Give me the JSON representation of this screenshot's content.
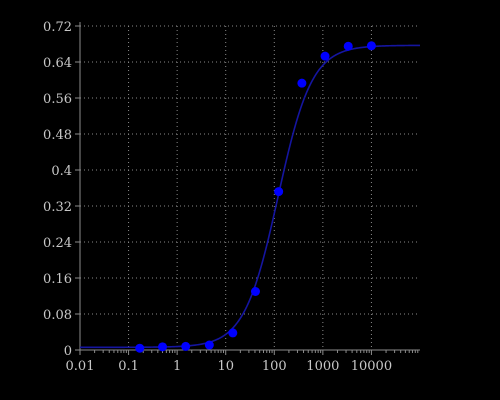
{
  "chart_data": {
    "type": "scatter",
    "title": "",
    "xlabel": "",
    "ylabel": "",
    "x_scale": "log",
    "xlim": [
      0.01,
      100000
    ],
    "ylim": [
      0,
      0.72
    ],
    "grid": true,
    "x_ticks": [
      0.01,
      0.1,
      1,
      10,
      100,
      1000,
      10000
    ],
    "x_tick_labels": [
      "0.01",
      "0.1",
      "1",
      "10",
      "100",
      "1000",
      "10000"
    ],
    "y_ticks": [
      0,
      0.08,
      0.16,
      0.24,
      0.32,
      0.4,
      0.48,
      0.56,
      0.64,
      0.72
    ],
    "y_tick_labels": [
      "0",
      "0.08",
      "0.16",
      "0.24",
      "0.32",
      "0.4",
      "0.48",
      "0.56",
      "0.64",
      "0.72"
    ],
    "series": [
      {
        "kind": "points",
        "color": "#0000ff",
        "x": [
          0.17,
          0.5,
          1.5,
          4.6,
          14,
          41,
          123,
          370,
          1110,
          3330,
          10000
        ],
        "y": [
          0.004,
          0.007,
          0.008,
          0.011,
          0.038,
          0.13,
          0.352,
          0.593,
          0.653,
          0.675,
          0.676
        ]
      },
      {
        "kind": "fit-curve",
        "color": "#1515a0",
        "bottom": 0.006,
        "top": 0.677,
        "ec50": 120,
        "hill": 1.25
      }
    ]
  }
}
